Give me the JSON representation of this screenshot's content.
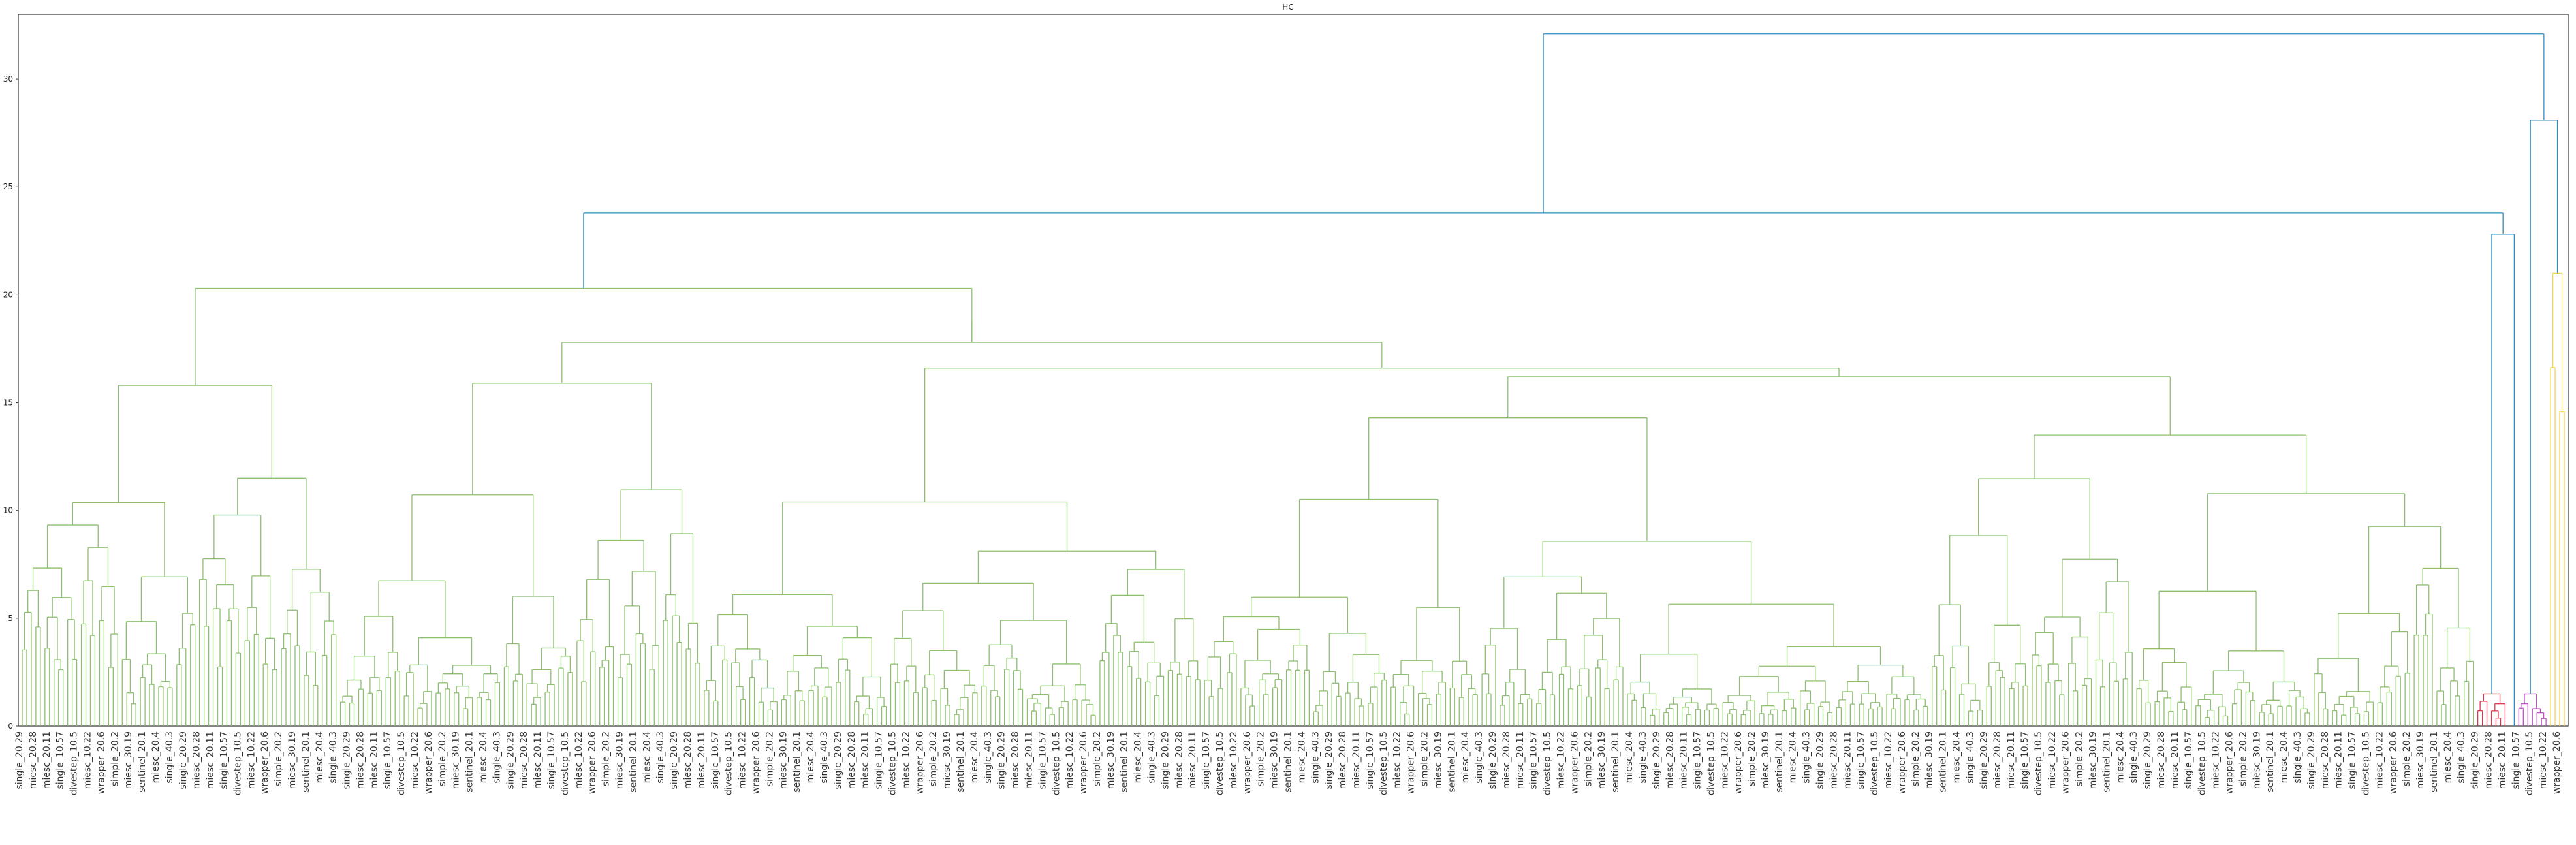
{
  "chart_data": {
    "type": "dendrogram",
    "title": "HC",
    "xlabel": "",
    "ylabel": "",
    "ylim": [
      0,
      33
    ],
    "yticks": [
      0,
      5,
      10,
      15,
      20,
      25,
      30
    ],
    "grid": false,
    "colors": {
      "green_cluster": "#8cc06d",
      "red_cluster": "#e0354d",
      "magenta_cluster": "#c050c8",
      "yellow_cluster": "#f2d44e",
      "above_threshold": "#2b8fc0"
    },
    "leaf_label_samples": [
      "single_20.29",
      "miesc_20.28",
      "miesc_20.11",
      "single_10.57",
      "divestep_10.5",
      "miesc_10.22",
      "wrapper_20.6",
      "simple_20.2",
      "miesc_30.19",
      "sentinel_20.1",
      "miesc_20.4",
      "single_40.3"
    ],
    "merges": [
      {
        "height": 32.1,
        "clusters": [
          "main",
          "tail"
        ]
      },
      {
        "height": 23.8,
        "clusters": [
          "green",
          "red+magenta"
        ]
      },
      {
        "height": 28.1,
        "clusters": [
          "magenta",
          "yellow"
        ]
      },
      {
        "height": 22.8,
        "clusters": [
          "red",
          "small-blue"
        ]
      },
      {
        "height": 20.3,
        "clusters": [
          "green-left",
          "green-right"
        ]
      },
      {
        "height": 18.8,
        "clusters": [
          "green-mid-a",
          "green-mid-b"
        ]
      },
      {
        "height": 17.8,
        "clusters": [
          "green-c",
          "green-d"
        ]
      },
      {
        "height": 16.6,
        "clusters": [
          "green-e",
          "green-f"
        ]
      },
      {
        "height": 16.2,
        "clusters": [
          "green-g",
          "green-h"
        ]
      },
      {
        "height": 14.3,
        "clusters": [
          "green-i",
          "green-j"
        ]
      },
      {
        "height": 13.5,
        "clusters": [
          "green-k",
          "green-l"
        ]
      },
      {
        "height": 10.4,
        "clusters": [
          "green-m",
          "green-n"
        ]
      }
    ]
  }
}
